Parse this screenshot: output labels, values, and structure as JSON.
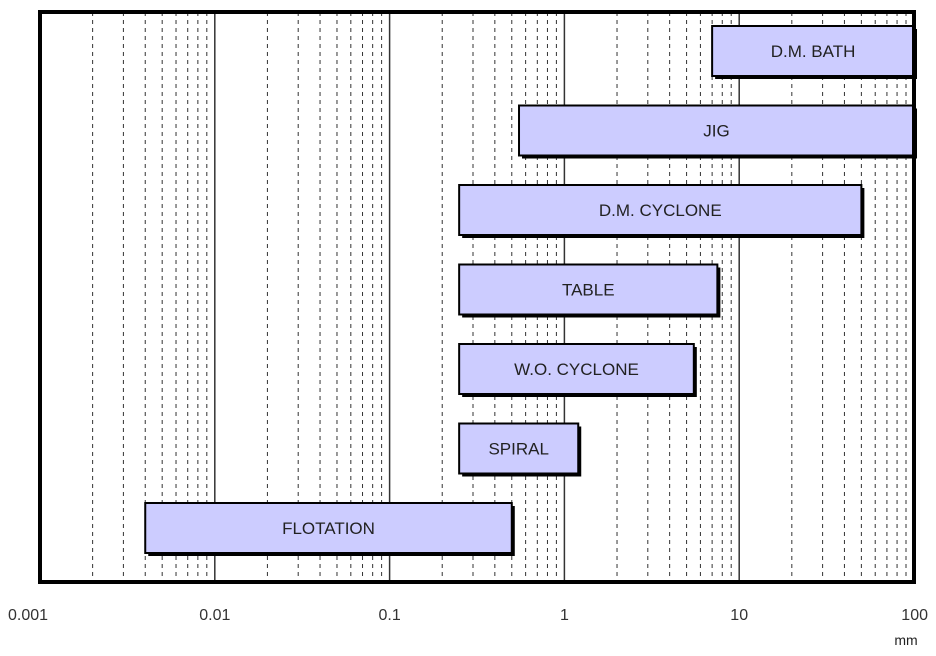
{
  "chart_data": {
    "type": "bar",
    "orientation": "horizontal",
    "x_scale": "log",
    "xlim": [
      0.001,
      100
    ],
    "xlabel": "mm",
    "x_ticks": [
      {
        "value": 0.001,
        "label": "0.001"
      },
      {
        "value": 0.01,
        "label": "0.01"
      },
      {
        "value": 0.1,
        "label": "0.1"
      },
      {
        "value": 1,
        "label": "1"
      },
      {
        "value": 10,
        "label": "10"
      },
      {
        "value": 100,
        "label": "100"
      }
    ],
    "grid": "vertical dashed minor, solid major",
    "bar_color": "#ccccff",
    "bar_edge_color": "#000000",
    "bars": [
      {
        "label": "D.M. BATH",
        "min": 7,
        "max": 100
      },
      {
        "label": "JIG",
        "min": 0.55,
        "max": 100
      },
      {
        "label": "D.M. CYCLONE",
        "min": 0.25,
        "max": 50
      },
      {
        "label": "TABLE",
        "min": 0.25,
        "max": 7.5
      },
      {
        "label": "W.O. CYCLONE",
        "min": 0.25,
        "max": 5.5
      },
      {
        "label": "SPIRAL",
        "min": 0.25,
        "max": 1.2
      },
      {
        "label": "FLOTATION",
        "min": 0.004,
        "max": 0.5
      }
    ]
  }
}
